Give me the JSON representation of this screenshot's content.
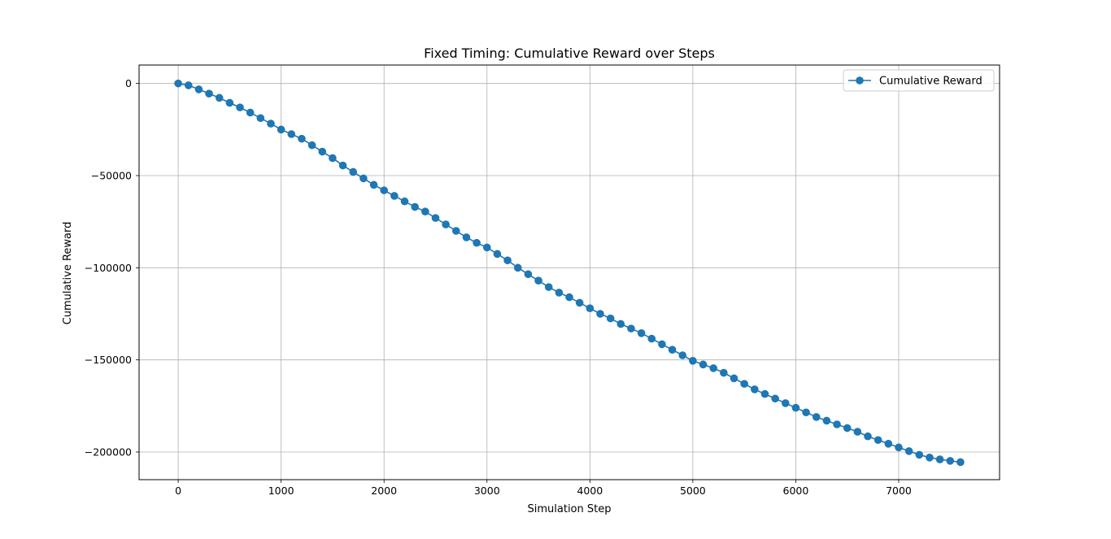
{
  "chart_data": {
    "type": "line",
    "title": "Fixed Timing: Cumulative Reward over Steps",
    "xlabel": "Simulation Step",
    "ylabel": "Cumulative Reward",
    "xlim": [
      -380,
      7980
    ],
    "ylim": [
      -215000,
      10000
    ],
    "grid": true,
    "legend_position": "top-right",
    "x_ticks": [
      0,
      1000,
      2000,
      3000,
      4000,
      5000,
      6000,
      7000
    ],
    "x_tick_labels": [
      "0",
      "1000",
      "2000",
      "3000",
      "4000",
      "5000",
      "6000",
      "7000"
    ],
    "y_ticks": [
      0,
      -50000,
      -100000,
      -150000,
      -200000
    ],
    "y_tick_labels": [
      "0",
      "−50000",
      "−100000",
      "−150000",
      "−200000"
    ],
    "series": [
      {
        "name": "Cumulative Reward",
        "color": "#1f77b4",
        "marker": "circle",
        "x": [
          0,
          100,
          200,
          300,
          400,
          500,
          600,
          700,
          800,
          900,
          1000,
          1100,
          1200,
          1300,
          1400,
          1500,
          1600,
          1700,
          1800,
          1900,
          2000,
          2100,
          2200,
          2300,
          2400,
          2500,
          2600,
          2700,
          2800,
          2900,
          3000,
          3100,
          3200,
          3300,
          3400,
          3500,
          3600,
          3700,
          3800,
          3900,
          4000,
          4100,
          4200,
          4300,
          4400,
          4500,
          4600,
          4700,
          4800,
          4900,
          5000,
          5100,
          5200,
          5300,
          5400,
          5500,
          5600,
          5700,
          5800,
          5900,
          6000,
          6100,
          6200,
          6300,
          6400,
          6500,
          6600,
          6700,
          6800,
          6900,
          7000,
          7100,
          7200,
          7300,
          7400,
          7500,
          7600
        ],
        "y": [
          0,
          -1000,
          -3200,
          -5500,
          -7800,
          -10500,
          -13000,
          -15800,
          -18800,
          -21800,
          -25000,
          -27500,
          -30000,
          -33500,
          -37000,
          -40500,
          -44500,
          -48000,
          -51500,
          -55000,
          -58000,
          -61000,
          -64000,
          -67000,
          -69500,
          -73000,
          -76500,
          -80000,
          -83500,
          -86500,
          -89000,
          -92500,
          -96000,
          -100000,
          -103500,
          -107000,
          -110500,
          -113500,
          -116000,
          -119000,
          -122000,
          -125000,
          -127500,
          -130500,
          -133000,
          -135500,
          -138500,
          -141500,
          -144500,
          -147500,
          -150500,
          -152500,
          -154500,
          -157000,
          -160000,
          -163000,
          -166000,
          -168500,
          -171000,
          -173500,
          -176000,
          -178500,
          -181000,
          -183000,
          -185000,
          -187000,
          -189000,
          -191500,
          -193500,
          -195500,
          -197500,
          -199500,
          -201500,
          -203000,
          -204000,
          -204800,
          -205500
        ]
      }
    ]
  }
}
